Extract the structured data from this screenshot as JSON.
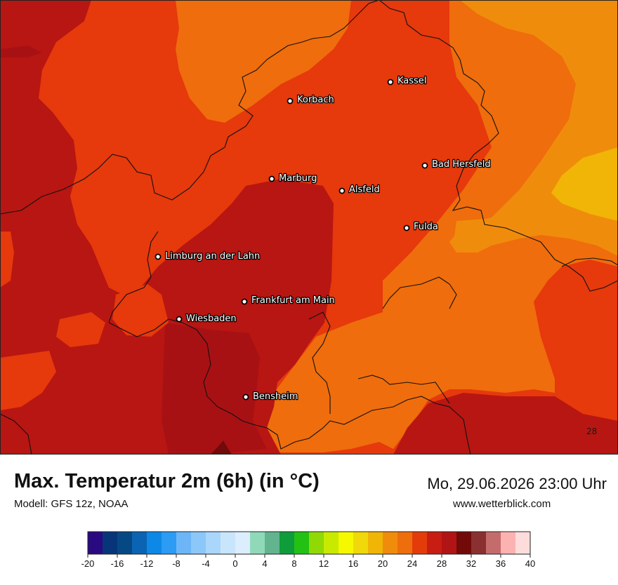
{
  "map": {
    "title": "Max. Temperatur 2m (6h) (in °C)",
    "model": "Modell: GFS 12z, NOAA",
    "datetime": "Mo, 29.06.2026 23:00 Uhr",
    "website": "www.wetterblick.com",
    "contour_value": "28",
    "cities": [
      {
        "name": "Kassel"
      },
      {
        "name": "Korbach"
      },
      {
        "name": "Bad Hersfeld"
      },
      {
        "name": "Marburg"
      },
      {
        "name": "Alsfeld"
      },
      {
        "name": "Fulda"
      },
      {
        "name": "Limburg an der Lahn"
      },
      {
        "name": "Frankfurt am Main"
      },
      {
        "name": "Wiesbaden"
      },
      {
        "name": "Bensheim"
      }
    ]
  },
  "legend": {
    "colors": [
      "#2a0a80",
      "#07357a",
      "#064883",
      "#0a64b3",
      "#0d88e6",
      "#2c9bf4",
      "#6cb6f8",
      "#8cc7fa",
      "#aad6fb",
      "#c8e5fc",
      "#dcedfd",
      "#8fd9b9",
      "#62b48e",
      "#0f9c3a",
      "#22c114",
      "#90d905",
      "#c8ea00",
      "#f6f800",
      "#f0d80a",
      "#f0b506",
      "#f08c0c",
      "#ee6d0c",
      "#e33c0a",
      "#c81d12",
      "#b01414",
      "#720a0a",
      "#8b3030",
      "#c46c6c",
      "#fdb2b2",
      "#ffdcdc"
    ],
    "ticks": [
      "-20",
      "-16",
      "-12",
      "-8",
      "-4",
      "0",
      "4",
      "8",
      "12",
      "16",
      "20",
      "24",
      "28",
      "32",
      "36",
      "40"
    ]
  }
}
